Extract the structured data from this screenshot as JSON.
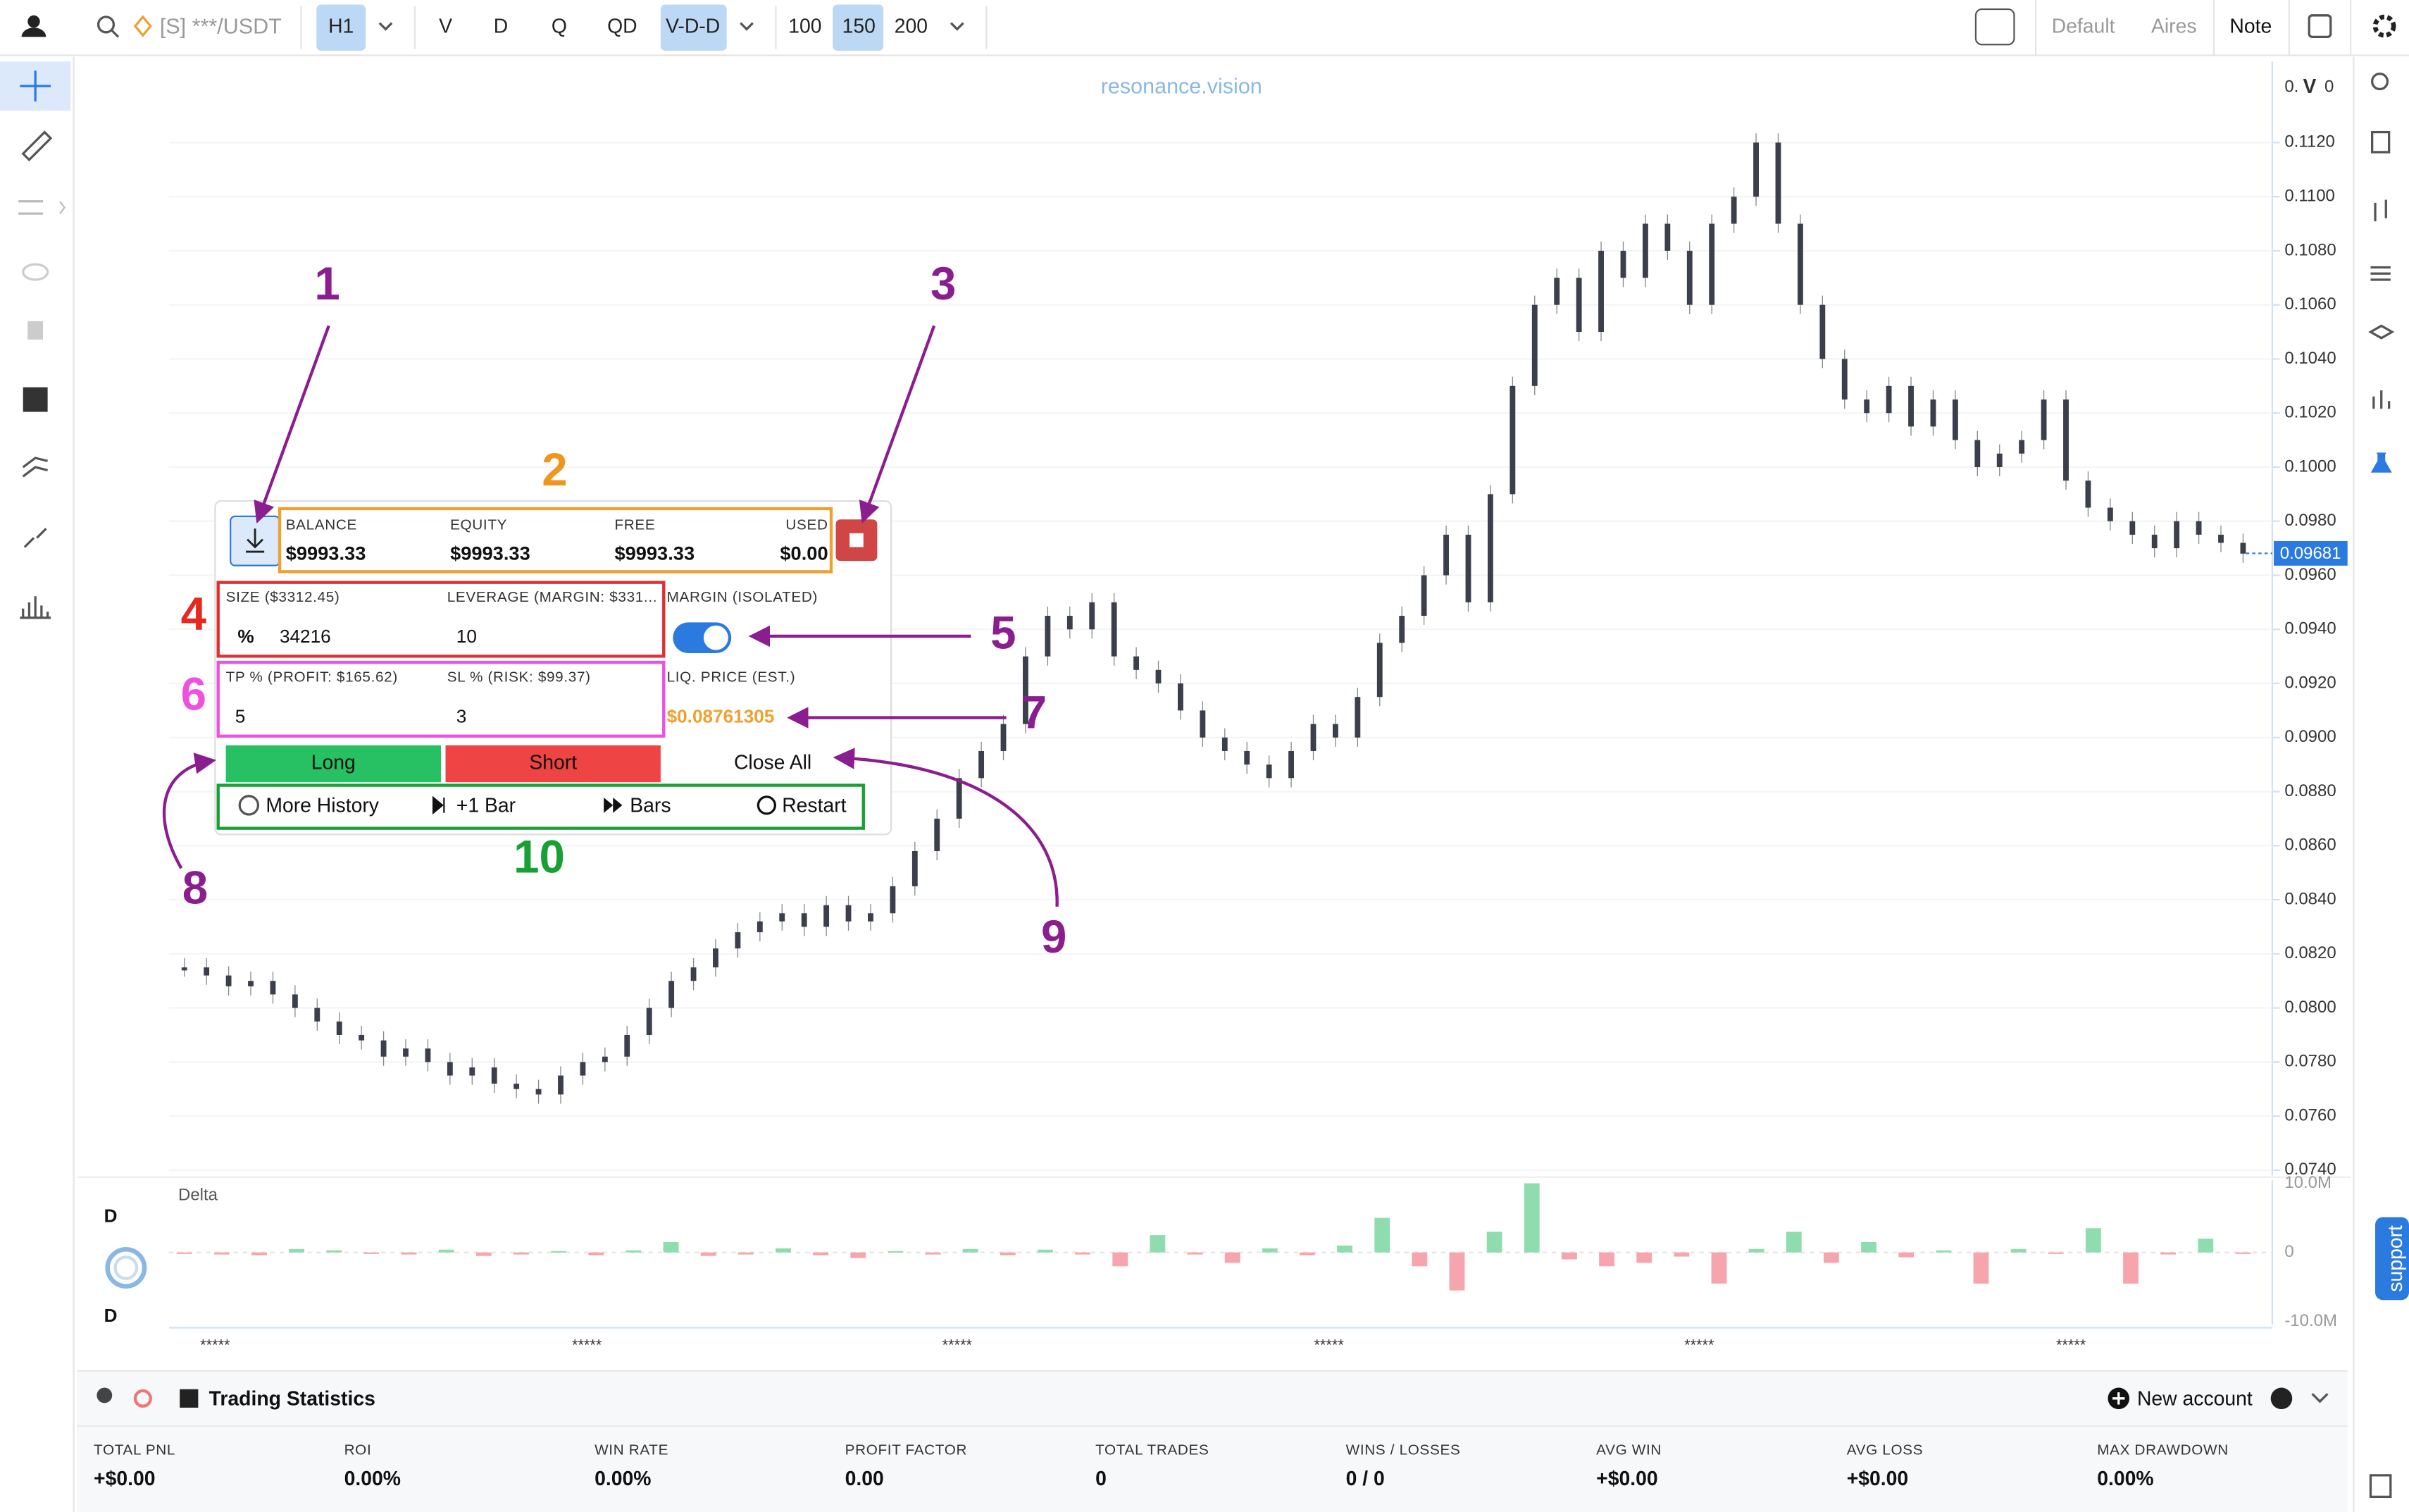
{
  "top_bar": {
    "symbol": "[S] ***/USDT",
    "timeframe": "H1",
    "views": [
      "V",
      "D",
      "Q",
      "QD",
      "V-D-D"
    ],
    "bar_counts": [
      "100",
      "150",
      "200"
    ],
    "layouts": [
      "Default",
      "Aires",
      "Note"
    ]
  },
  "watermark": "resonance.vision",
  "chart_data": [
    {
      "type": "candlestick",
      "axis_header": [
        "0.",
        "V",
        "0"
      ],
      "ylim": [
        0.0738,
        0.115
      ],
      "grid": true,
      "color": "#3a3f4b",
      "yticks": [
        {
          "value": 0.074,
          "label": "0.0740"
        },
        {
          "value": 0.076,
          "label": "0.0760"
        },
        {
          "value": 0.078,
          "label": "0.0780"
        },
        {
          "value": 0.08,
          "label": "0.0800"
        },
        {
          "value": 0.082,
          "label": "0.0820"
        },
        {
          "value": 0.084,
          "label": "0.0840"
        },
        {
          "value": 0.086,
          "label": "0.0860"
        },
        {
          "value": 0.088,
          "label": "0.0880"
        },
        {
          "value": 0.09,
          "label": "0.0900"
        },
        {
          "value": 0.092,
          "label": "0.0920"
        },
        {
          "value": 0.094,
          "label": "0.0940"
        },
        {
          "value": 0.096,
          "label": "0.0960"
        },
        {
          "value": 0.098,
          "label": "0.0980"
        },
        {
          "value": 0.1,
          "label": "0.1000"
        },
        {
          "value": 0.102,
          "label": "0.1020"
        },
        {
          "value": 0.104,
          "label": "0.1040"
        },
        {
          "value": 0.106,
          "label": "0.1060"
        },
        {
          "value": 0.108,
          "label": "0.1080"
        },
        {
          "value": 0.11,
          "label": "0.1100"
        },
        {
          "value": 0.112,
          "label": "0.1120"
        }
      ],
      "current_price": 0.09681,
      "values": [
        0.0815,
        0.0812,
        0.0808,
        0.081,
        0.0805,
        0.08,
        0.0795,
        0.079,
        0.0788,
        0.0782,
        0.0785,
        0.078,
        0.0775,
        0.0778,
        0.0772,
        0.077,
        0.0768,
        0.0775,
        0.078,
        0.0782,
        0.079,
        0.08,
        0.081,
        0.0815,
        0.0822,
        0.0828,
        0.0832,
        0.0835,
        0.083,
        0.0838,
        0.0832,
        0.0835,
        0.0845,
        0.0858,
        0.087,
        0.0885,
        0.0895,
        0.0905,
        0.093,
        0.0945,
        0.094,
        0.095,
        0.093,
        0.0925,
        0.092,
        0.091,
        0.09,
        0.0895,
        0.089,
        0.0885,
        0.0895,
        0.0905,
        0.09,
        0.0915,
        0.0935,
        0.0945,
        0.096,
        0.0975,
        0.095,
        0.099,
        0.103,
        0.106,
        0.107,
        0.105,
        0.108,
        0.107,
        0.109,
        0.108,
        0.106,
        0.109,
        0.11,
        0.112,
        0.109,
        0.106,
        0.104,
        0.1025,
        0.102,
        0.103,
        0.1015,
        0.1025,
        0.101,
        0.1,
        0.1005,
        0.101,
        0.1025,
        0.0995,
        0.0985,
        0.098,
        0.0975,
        0.097,
        0.098,
        0.0975,
        0.0972,
        0.0968
      ]
    },
    {
      "type": "bar",
      "title": "Delta",
      "side_labels": [
        "D",
        "D"
      ],
      "ylim": [
        -10000000,
        10000000
      ],
      "yticks": [
        {
          "value": 10000000,
          "label": "10.0M"
        },
        0,
        {
          "value": -10000000,
          "label": "-10.0M"
        }
      ],
      "colors": {
        "positive": "#8fdcae",
        "negative": "#f5a5ab"
      },
      "x_labels": [
        "*****",
        "*****",
        "*****",
        "*****",
        "*****",
        "*****"
      ],
      "values": [
        -200000,
        -300000,
        -400000,
        500000,
        300000,
        -200000,
        -300000,
        400000,
        -500000,
        -300000,
        200000,
        -400000,
        300000,
        1500000,
        -500000,
        -300000,
        600000,
        -400000,
        -800000,
        200000,
        -300000,
        500000,
        -400000,
        400000,
        -300000,
        -2000000,
        2500000,
        -300000,
        -1500000,
        600000,
        -400000,
        1000000,
        5000000,
        -2000000,
        -5500000,
        3000000,
        10000000,
        -1000000,
        -2000000,
        -1500000,
        -600000,
        -4500000,
        500000,
        3000000,
        -1500000,
        1500000,
        -700000,
        300000,
        -4500000,
        500000,
        -200000,
        3500000,
        -4500000,
        -300000,
        2000000,
        -200000
      ]
    }
  ],
  "trade_panel": {
    "account": [
      {
        "label": "BALANCE",
        "value": "$9993.33"
      },
      {
        "label": "EQUITY",
        "value": "$9993.33"
      },
      {
        "label": "FREE",
        "value": "$9993.33"
      },
      {
        "label": "USED",
        "value": "$0.00"
      }
    ],
    "size_label": "SIZE ($3312.45)",
    "size_unit": "%",
    "size": "34216",
    "leverage_label": "LEVERAGE (MARGIN: $331...",
    "leverage": "10",
    "margin_label": "MARGIN (ISOLATED)",
    "tp_label": "TP % (PROFIT: $165.62)",
    "tp": "5",
    "sl_label": "SL % (RISK: $99.37)",
    "sl": "3",
    "liq_label": "LIQ. PRICE (EST.)",
    "liq_price": "$0.08761305",
    "long": "Long",
    "short": "Short",
    "close_all": "Close All",
    "more_history": "More History",
    "plus_bar": "+1 Bar",
    "bars": "Bars",
    "restart": "Restart"
  },
  "annotations": [
    "1",
    "2",
    "3",
    "4",
    "5",
    "6",
    "7",
    "8",
    "9",
    "10"
  ],
  "stats": {
    "title": "Trading Statistics",
    "new_account": "New account",
    "items": [
      {
        "label": "TOTAL PNL",
        "value": "+$0.00"
      },
      {
        "label": "ROI",
        "value": "0.00%"
      },
      {
        "label": "WIN RATE",
        "value": "0.00%"
      },
      {
        "label": "PROFIT FACTOR",
        "value": "0.00"
      },
      {
        "label": "TOTAL TRADES",
        "value": "0"
      },
      {
        "label": "WINS / LOSSES",
        "value": "0 / 0"
      },
      {
        "label": "AVG WIN",
        "value": "+$0.00"
      },
      {
        "label": "AVG LOSS",
        "value": "+$0.00"
      },
      {
        "label": "MAX DRAWDOWN",
        "value": "0.00%"
      }
    ]
  },
  "support": "support"
}
